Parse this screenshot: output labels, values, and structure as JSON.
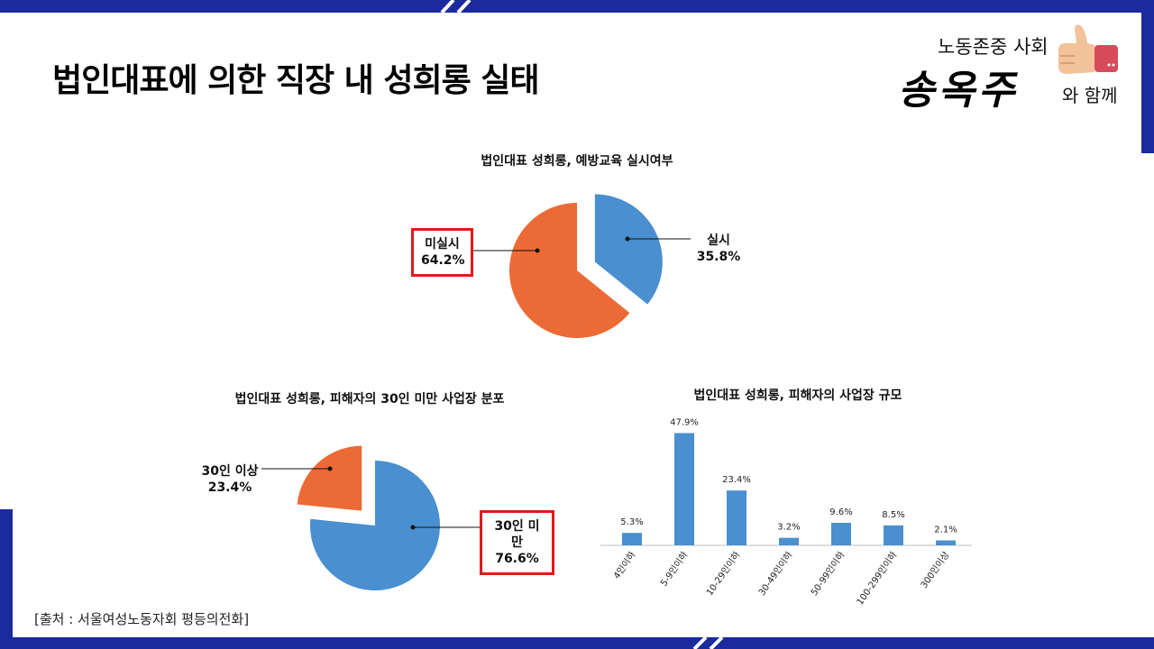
{
  "page_title": "법인대표에 의한 직장 내 성희롱 실태",
  "brand": {
    "top": "노동존중 사회",
    "name": "송옥주",
    "with": "와 함께"
  },
  "colors": {
    "blue": "#4A8FCF",
    "orange": "#EC6A35",
    "navy": "#1B2A9C",
    "highlight": "#E01A1A"
  },
  "source": "[출처 : 서울여성노동자회 평등의전화]",
  "chart_data": [
    {
      "type": "pie",
      "title": "법인대표 성희롱, 예방교육 실시여부",
      "slices": [
        {
          "label": "실시",
          "value": 35.8,
          "value_label": "35.8%",
          "color": "#4A8FCF"
        },
        {
          "label": "미실시",
          "value": 64.2,
          "value_label": "64.2%",
          "color": "#EC6A35",
          "highlighted": true
        }
      ]
    },
    {
      "type": "pie",
      "title": "법인대표 성희롱, 피해자의 30인 미만 사업장 분포",
      "slices": [
        {
          "label": "30인 이상",
          "value": 23.4,
          "value_label": "23.4%",
          "color": "#EC6A35"
        },
        {
          "label": "30인 미만",
          "value": 76.6,
          "value_label": "76.6%",
          "color": "#4A8FCF",
          "highlighted": true
        }
      ]
    },
    {
      "type": "bar",
      "title": "법인대표 성희롱, 피해자의 사업장 규모",
      "categories": [
        "4인이하",
        "5-9인이하",
        "10-29인이하",
        "30-49인이하",
        "50-99인이하",
        "100-299인이하",
        "300인이상"
      ],
      "values": [
        5.3,
        47.9,
        23.4,
        3.2,
        9.6,
        8.5,
        2.1
      ],
      "value_labels": [
        "5.3%",
        "47.9%",
        "23.4%",
        "3.2%",
        "9.6%",
        "8.5%",
        "2.1%"
      ],
      "ylim": [
        0,
        50
      ],
      "grid": false,
      "color": "#4A8FCF"
    }
  ]
}
